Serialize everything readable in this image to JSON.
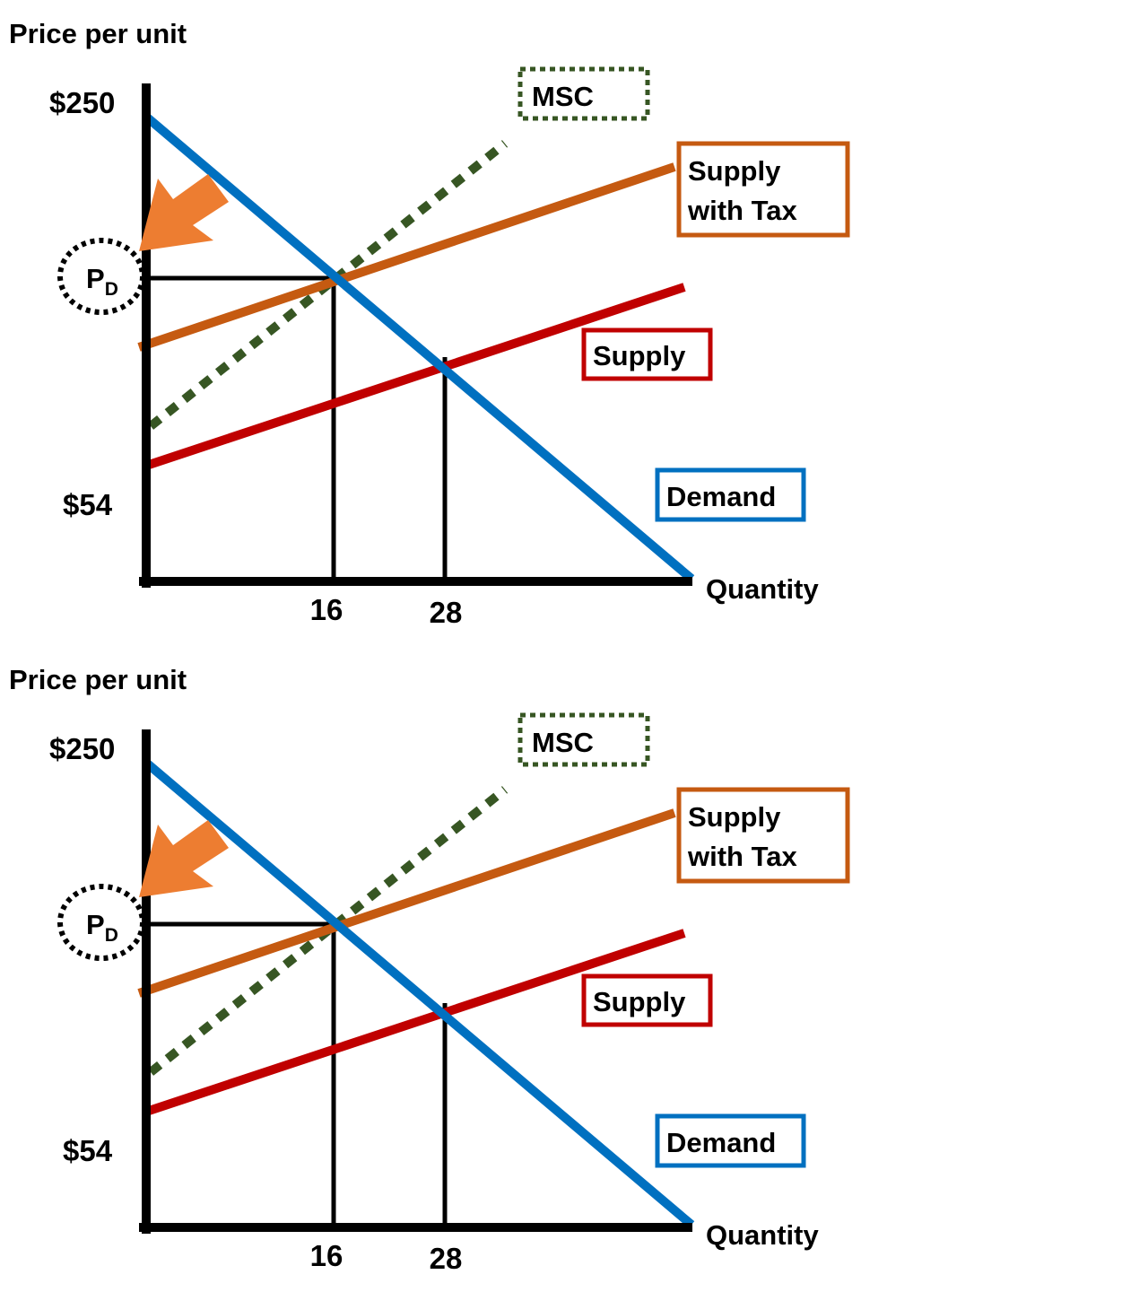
{
  "chart_data": [
    {
      "type": "line",
      "ylabel": "Price per unit",
      "xlabel": "Quantity",
      "y_ticks": [
        "$250",
        "$54"
      ],
      "x_ticks": [
        "16",
        "28"
      ],
      "price_marker": {
        "main": "P",
        "sub": "D"
      },
      "series": [
        {
          "name": "MSC",
          "style": "dotted",
          "color": "#375623"
        },
        {
          "name": "Supply with Tax",
          "name_lines": [
            "Supply",
            "with Tax"
          ],
          "color": "#c55a11"
        },
        {
          "name": "Supply",
          "color": "#c00000"
        },
        {
          "name": "Demand",
          "color": "#0070c0"
        }
      ],
      "equilibrium_quantities": [
        16,
        28
      ],
      "annotation_arrow_color": "#ed7d31"
    },
    {
      "type": "line",
      "ylabel": "Price per unit",
      "xlabel": "Quantity",
      "y_ticks": [
        "$250",
        "$54"
      ],
      "x_ticks": [
        "16",
        "28"
      ],
      "price_marker": {
        "main": "P",
        "sub": "D"
      },
      "series": [
        {
          "name": "MSC",
          "style": "dotted",
          "color": "#375623"
        },
        {
          "name": "Supply with Tax",
          "name_lines": [
            "Supply",
            "with Tax"
          ],
          "color": "#c55a11"
        },
        {
          "name": "Supply",
          "color": "#c00000"
        },
        {
          "name": "Demand",
          "color": "#0070c0"
        }
      ],
      "equilibrium_quantities": [
        16,
        28
      ],
      "annotation_arrow_color": "#ed7d31"
    }
  ]
}
